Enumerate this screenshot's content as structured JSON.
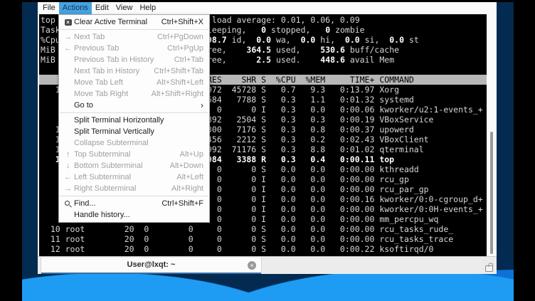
{
  "colors": {
    "menubar_highlight": "#46a2e0",
    "terminal_bg": "#000000",
    "terminal_fg": "#d6d6d6",
    "terminal_bold": "#ffffff",
    "table_header_bg": "#b7b7b7",
    "tab_underline": "#3a6ea5",
    "wallpaper_navy": "#032a50",
    "wallpaper_blue": "#1e9cf4"
  },
  "menubar": {
    "items": [
      {
        "label": "File",
        "active": false
      },
      {
        "label": "Actions",
        "active": true
      },
      {
        "label": "Edit",
        "active": false
      },
      {
        "label": "View",
        "active": false
      },
      {
        "label": "Help",
        "active": false
      }
    ]
  },
  "menu": {
    "icon_glyphs": {
      "arrow-right": "→",
      "arrow-left": "←",
      "arrow-up": "↑",
      "arrow-down": "↓"
    },
    "submenu_glyph": "›",
    "clear_glyph": "×",
    "items": [
      {
        "label": "Clear Active Terminal",
        "shortcut": "Ctrl+Shift+X",
        "icon": "clear-terminal",
        "enabled": true,
        "submenu": false,
        "separator_after": true
      },
      {
        "label": "Next Tab",
        "shortcut": "Ctrl+PgDown",
        "icon": "arrow-right",
        "enabled": false,
        "submenu": false,
        "separator_after": false
      },
      {
        "label": "Previous Tab",
        "shortcut": "Ctrl+PgUp",
        "icon": "arrow-left",
        "enabled": false,
        "submenu": false,
        "separator_after": false
      },
      {
        "label": "Previous Tab in History",
        "shortcut": "Ctrl+Tab",
        "icon": null,
        "enabled": false,
        "submenu": false,
        "separator_after": false
      },
      {
        "label": "Next Tab in History",
        "shortcut": "Ctrl+Shift+Tab",
        "icon": null,
        "enabled": false,
        "submenu": false,
        "separator_after": false
      },
      {
        "label": "Move Tab Left",
        "shortcut": "Alt+Shift+Left",
        "icon": null,
        "enabled": false,
        "submenu": false,
        "separator_after": false
      },
      {
        "label": "Move Tab Right",
        "shortcut": "Alt+Shift+Right",
        "icon": null,
        "enabled": false,
        "submenu": false,
        "separator_after": false
      },
      {
        "label": "Go to",
        "shortcut": "",
        "icon": null,
        "enabled": true,
        "submenu": true,
        "separator_after": true
      },
      {
        "label": "Split Terminal Horizontally",
        "shortcut": "",
        "icon": null,
        "enabled": true,
        "submenu": false,
        "separator_after": false
      },
      {
        "label": "Split Terminal Vertically",
        "shortcut": "",
        "icon": null,
        "enabled": true,
        "submenu": false,
        "separator_after": false
      },
      {
        "label": "Collapse Subterminal",
        "shortcut": "",
        "icon": null,
        "enabled": false,
        "submenu": false,
        "separator_after": false
      },
      {
        "label": "Top Subterminal",
        "shortcut": "Alt+Up",
        "icon": "arrow-up",
        "enabled": false,
        "submenu": false,
        "separator_after": false
      },
      {
        "label": "Bottom Subterminal",
        "shortcut": "Alt+Down",
        "icon": "arrow-down",
        "enabled": false,
        "submenu": false,
        "separator_after": false
      },
      {
        "label": "Left Subterminal",
        "shortcut": "Alt+Left",
        "icon": "arrow-left",
        "enabled": false,
        "submenu": false,
        "separator_after": false
      },
      {
        "label": "Right Subterminal",
        "shortcut": "Alt+Right",
        "icon": "arrow-right",
        "enabled": false,
        "submenu": false,
        "separator_after": true
      },
      {
        "label": "Find...",
        "shortcut": "Ctrl+Shift+F",
        "icon": "search",
        "enabled": true,
        "submenu": false,
        "separator_after": false
      },
      {
        "label": "Handle history...",
        "shortcut": "",
        "icon": null,
        "enabled": true,
        "submenu": false,
        "separator_after": false
      }
    ]
  },
  "terminal": {
    "summary_lines": [
      {
        "left": "top",
        "segments": [
          {
            "t": " load average: 0.01, 0.06, 0.09",
            "b": false
          }
        ]
      },
      {
        "left": "Task",
        "segments": [
          {
            "t": "leeping,   ",
            "b": false
          },
          {
            "t": "0",
            "b": true
          },
          {
            "t": " stopped,   ",
            "b": false
          },
          {
            "t": "0",
            "b": true
          },
          {
            "t": " zombie",
            "b": false
          }
        ]
      },
      {
        "left": "%Cpu",
        "segments": [
          {
            "t": "98.7",
            "b": true
          },
          {
            "t": " id,  ",
            "b": false
          },
          {
            "t": "0.0",
            "b": true
          },
          {
            "t": " wa,  ",
            "b": false
          },
          {
            "t": "0.0",
            "b": true
          },
          {
            "t": " hi,  ",
            "b": false
          },
          {
            "t": "0.0",
            "b": true
          },
          {
            "t": " si,  ",
            "b": false
          },
          {
            "t": "0.0",
            "b": true
          },
          {
            "t": " st",
            "b": false
          }
        ]
      },
      {
        "left": "MiB",
        "segments": [
          {
            "t": "ree,    ",
            "b": false
          },
          {
            "t": "364.5",
            "b": true
          },
          {
            "t": " used,    ",
            "b": false
          },
          {
            "t": "530.6",
            "b": true
          },
          {
            "t": " buff/cache",
            "b": false
          }
        ]
      },
      {
        "left": "MiB",
        "segments": [
          {
            "t": "ree,      ",
            "b": false
          },
          {
            "t": "2.5",
            "b": true
          },
          {
            "t": " used.    ",
            "b": false
          },
          {
            "t": "448.6",
            "b": true
          },
          {
            "t": " avail Mem",
            "b": false
          }
        ]
      }
    ],
    "header_row": {
      "left": "",
      "right": "RES    SHR S  %CPU  %MEM     TIME+ COMMAND"
    },
    "process_rows": [
      {
        "left": "   1",
        "right": "972  45728 S   0.7   9.3   0:13.97 Xorg",
        "bold": false
      },
      {
        "left": "",
        "right": "584   7788 S   0.3   1.1   0:01.32 systemd",
        "bold": false
      },
      {
        "left": "",
        "right": "  0      0 I   0.3   0.0   0:00.06 kworker/u2:1-events_+",
        "bold": false
      },
      {
        "left": "",
        "right": "892   2504 S   0.3   0.3   0:00.19 VBoxService",
        "bold": false
      },
      {
        "left": "   1",
        "right": "300   7176 S   0.3   0.8   0:00.37 upowerd",
        "bold": false
      },
      {
        "left": "   1",
        "right": "456   2212 S   0.3   0.2   0:02.43 VBoxClient",
        "bold": false
      },
      {
        "left": "   1",
        "right": "992  71176 S   0.3   8.8   0:01.02 qterminal",
        "bold": false
      },
      {
        "left": "   1",
        "right": "984   3388 R   0.3   0.4   0:00.11 top",
        "bold": true
      },
      {
        "left": "",
        "right": "  0      0 S   0.0   0.0   0:00.00 kthreadd",
        "bold": false
      },
      {
        "left": "",
        "right": "  0      0 I   0.0   0.0   0:00.00 rcu_gp",
        "bold": false
      },
      {
        "left": "",
        "right": "  0      0 I   0.0   0.0   0:00.00 rcu_par_gp",
        "bold": false
      },
      {
        "left": "",
        "right": "  0      0 I   0.0   0.0   0:00.16 kworker/0:0-cgroup_d+",
        "bold": false
      },
      {
        "left": "",
        "right": "  0      0 I   0.0   0.0   0:00.00 kworker/0:0H-events_+",
        "bold": false
      },
      {
        "left": "",
        "right": "  0      0 I   0.0   0.0   0:00.00 mm_percpu_wq",
        "bold": false
      },
      {
        "left": "  10 root        20  0        0",
        "right": "  0      0 S   0.0   0.0   0:00.00 rcu_tasks_rude_",
        "bold": false
      },
      {
        "left": "  11 root        20  0        0",
        "right": "  0      0 S   0.0   0.0   0:00.00 rcu_tasks_trace",
        "bold": false
      },
      {
        "left": "  12 root        20  0        0",
        "right": "  0      0 S   0.0   0.0   0:00.22 ksoftirqd/0",
        "bold": false
      }
    ]
  },
  "tabbar": {
    "tab_label": "User@lxqt: ~",
    "close_glyph": "×"
  }
}
